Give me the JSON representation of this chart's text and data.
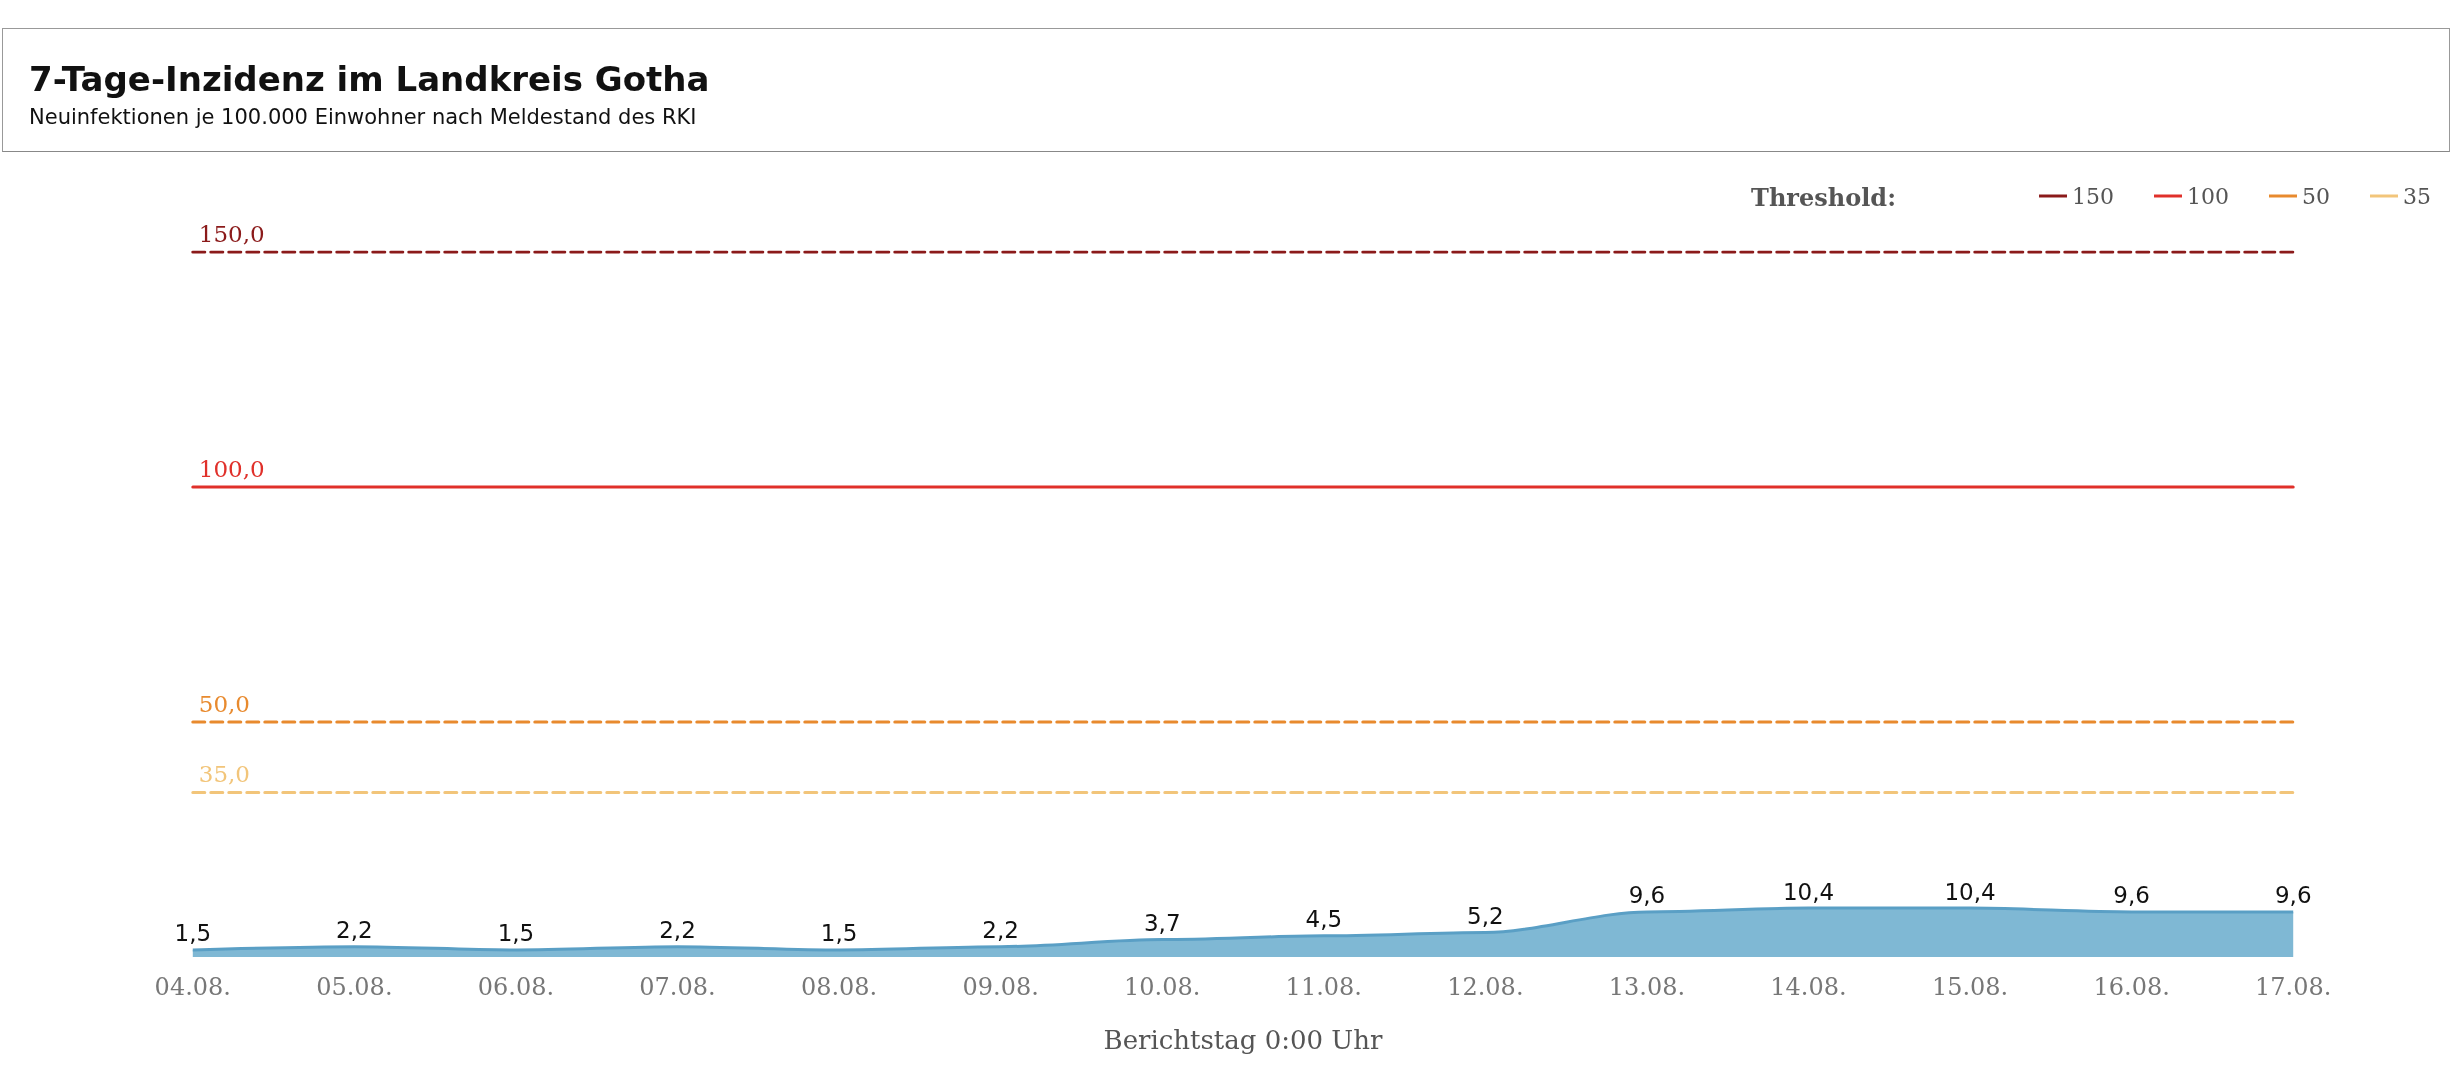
{
  "chart_data": {
    "type": "area",
    "title": "7-Tage-Inzidenz im Landkreis Gotha",
    "subtitle": "Neuinfektionen je 100.000 Einwohner nach Meldestand des RKI",
    "xlabel": "Berichtstag 0:00 Uhr",
    "legend_title": "Threshold:",
    "legend": "top right",
    "grid": false,
    "tick_labels": "x",
    "marker": "none",
    "categories": [
      "04.08.",
      "05.08.",
      "06.08.",
      "07.08.",
      "08.08.",
      "09.08.",
      "10.08.",
      "11.08.",
      "12.08.",
      "13.08.",
      "14.08.",
      "15.08.",
      "16.08.",
      "17.08."
    ],
    "series": [
      {
        "color": "#7fb8d4",
        "values": [
          1.5,
          2.2,
          1.5,
          2.2,
          1.5,
          2.2,
          3.7,
          4.5,
          5.2,
          9.6,
          10.4,
          10.4,
          9.6,
          9.6
        ],
        "value_labels": [
          "1,5",
          "2,2",
          "1,5",
          "2,2",
          "1,5",
          "2,2",
          "3,7",
          "4,5",
          "5,2",
          "9,6",
          "10,4",
          "10,4",
          "9,6",
          "9,6"
        ]
      },
      {
        "type": "line",
        "name": "150",
        "color": "#8b1a1a",
        "line_style": "dashed",
        "values": [
          150,
          150,
          150,
          150,
          150,
          150,
          150,
          150,
          150,
          150,
          150,
          150,
          150,
          150
        ],
        "value_labels": [
          "150,0",
          null,
          null,
          null,
          null,
          null,
          null,
          null,
          null,
          null,
          null,
          null,
          null,
          null
        ]
      },
      {
        "type": "line",
        "name": "100",
        "color": "#e0302a",
        "line_style": "solid",
        "values": [
          100,
          100,
          100,
          100,
          100,
          100,
          100,
          100,
          100,
          100,
          100,
          100,
          100,
          100
        ],
        "value_labels": [
          "100,0",
          null,
          null,
          null,
          null,
          null,
          null,
          null,
          null,
          null,
          null,
          null,
          null,
          null
        ]
      },
      {
        "type": "line",
        "name": "50",
        "color": "#e88a2e",
        "line_style": "dashed",
        "values": [
          50,
          50,
          50,
          50,
          50,
          50,
          50,
          50,
          50,
          50,
          50,
          50,
          50,
          50
        ],
        "value_labels": [
          "50,0",
          null,
          null,
          null,
          null,
          null,
          null,
          null,
          null,
          null,
          null,
          null,
          null,
          null
        ]
      },
      {
        "type": "line",
        "name": "35",
        "color": "#f2c57a",
        "line_style": "dashed",
        "values": [
          35,
          35,
          35,
          35,
          35,
          35,
          35,
          35,
          35,
          35,
          35,
          35,
          35,
          35
        ],
        "value_labels": [
          "35,0",
          null,
          null,
          null,
          null,
          null,
          null,
          null,
          null,
          null,
          null,
          null,
          null,
          null
        ]
      }
    ]
  }
}
